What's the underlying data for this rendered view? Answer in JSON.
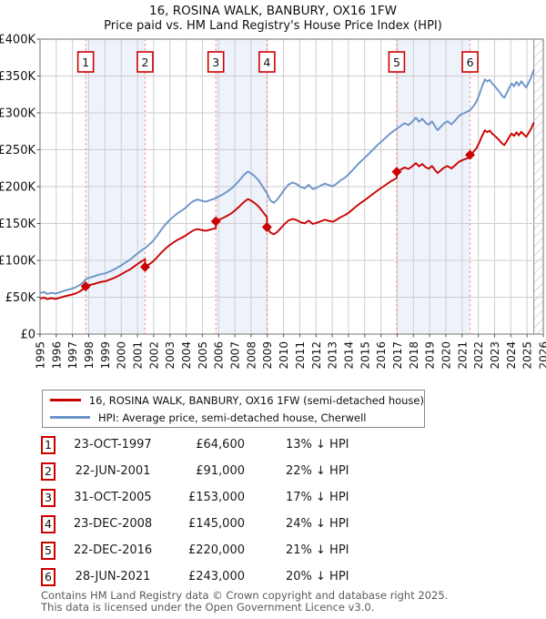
{
  "header": {
    "title": "16, ROSINA WALK, BANBURY, OX16 1FW",
    "subtitle": "Price paid vs. HM Land Registry's House Price Index (HPI)"
  },
  "colors": {
    "price_line": "#cc0000",
    "hpi_line": "#6b94c8",
    "sale_dash": "#f98080",
    "band_fill": "#eef2fb",
    "grid": "#cdcdcd",
    "plot_border": "#8a8a8a",
    "hatch_line": "#bbbbbb",
    "tick_text": "#111111",
    "footer_text": "#595959"
  },
  "legend": [
    {
      "label": "16, ROSINA WALK, BANBURY, OX16 1FW (semi-detached house)",
      "color": "#cc0000"
    },
    {
      "label": "HPI: Average price, semi-detached house, Cherwell",
      "color": "#6b94c8"
    }
  ],
  "chart_data": {
    "type": "line",
    "title": "16, ROSINA WALK, BANBURY, OX16 1FW — Price paid vs. HPI",
    "xlabel": "",
    "ylabel": "",
    "x_range": [
      1995,
      2026
    ],
    "y_range": [
      0,
      400000
    ],
    "y_ticks": [
      {
        "value": 0,
        "label": "£0"
      },
      {
        "value": 50000,
        "label": "£50K"
      },
      {
        "value": 100000,
        "label": "£100K"
      },
      {
        "value": 150000,
        "label": "£150K"
      },
      {
        "value": 200000,
        "label": "£200K"
      },
      {
        "value": 250000,
        "label": "£250K"
      },
      {
        "value": 300000,
        "label": "£300K"
      },
      {
        "value": 350000,
        "label": "£350K"
      },
      {
        "value": 400000,
        "label": "£400K"
      }
    ],
    "x_tick_years": [
      1995,
      1996,
      1997,
      1998,
      1999,
      2000,
      2001,
      2002,
      2003,
      2004,
      2005,
      2006,
      2007,
      2008,
      2009,
      2010,
      2011,
      2012,
      2013,
      2014,
      2015,
      2016,
      2017,
      2018,
      2019,
      2020,
      2021,
      2022,
      2023,
      2024,
      2025,
      2026
    ],
    "data_end_year": 2025.42,
    "ownership_bands": [
      [
        1997.81,
        2001.47
      ],
      [
        2005.83,
        2008.98
      ],
      [
        2016.97,
        2021.49
      ]
    ],
    "hpi_series": {
      "name": "HPI: Average price, semi-detached house, Cherwell",
      "points": [
        [
          1995.0,
          55500
        ],
        [
          1995.25,
          57000
        ],
        [
          1995.45,
          54500
        ],
        [
          1995.7,
          56000
        ],
        [
          1995.95,
          54800
        ],
        [
          1996.2,
          56500
        ],
        [
          1996.45,
          58500
        ],
        [
          1996.7,
          60000
        ],
        [
          1996.95,
          61500
        ],
        [
          1997.2,
          63500
        ],
        [
          1997.45,
          66500
        ],
        [
          1997.65,
          70000
        ],
        [
          1997.81,
          74300
        ],
        [
          1998.05,
          76500
        ],
        [
          1998.3,
          78000
        ],
        [
          1998.55,
          80000
        ],
        [
          1998.8,
          81500
        ],
        [
          1999.05,
          82500
        ],
        [
          1999.3,
          85000
        ],
        [
          1999.55,
          87500
        ],
        [
          1999.8,
          90500
        ],
        [
          2000.05,
          94000
        ],
        [
          2000.3,
          97500
        ],
        [
          2000.55,
          101000
        ],
        [
          2000.8,
          105500
        ],
        [
          2001.05,
          110000
        ],
        [
          2001.25,
          113500
        ],
        [
          2001.47,
          116700
        ],
        [
          2001.7,
          121000
        ],
        [
          2001.95,
          126000
        ],
        [
          2002.2,
          133000
        ],
        [
          2002.45,
          141000
        ],
        [
          2002.7,
          148000
        ],
        [
          2002.95,
          154000
        ],
        [
          2003.2,
          159000
        ],
        [
          2003.45,
          163500
        ],
        [
          2003.7,
          167000
        ],
        [
          2003.95,
          171000
        ],
        [
          2004.2,
          176000
        ],
        [
          2004.45,
          180500
        ],
        [
          2004.7,
          182500
        ],
        [
          2004.95,
          181000
        ],
        [
          2005.2,
          179500
        ],
        [
          2005.45,
          181500
        ],
        [
          2005.65,
          183000
        ],
        [
          2005.83,
          184300
        ],
        [
          2006.05,
          187000
        ],
        [
          2006.3,
          190000
        ],
        [
          2006.55,
          193500
        ],
        [
          2006.8,
          197500
        ],
        [
          2007.05,
          203000
        ],
        [
          2007.3,
          209000
        ],
        [
          2007.55,
          215500
        ],
        [
          2007.8,
          220500
        ],
        [
          2008.0,
          218000
        ],
        [
          2008.2,
          214500
        ],
        [
          2008.45,
          209000
        ],
        [
          2008.7,
          200500
        ],
        [
          2008.98,
          190800
        ],
        [
          2009.2,
          181000
        ],
        [
          2009.4,
          178000
        ],
        [
          2009.6,
          182000
        ],
        [
          2009.8,
          188000
        ],
        [
          2010.05,
          196000
        ],
        [
          2010.3,
          202500
        ],
        [
          2010.55,
          205500
        ],
        [
          2010.8,
          203500
        ],
        [
          2011.05,
          199500
        ],
        [
          2011.3,
          197500
        ],
        [
          2011.55,
          202500
        ],
        [
          2011.8,
          196500
        ],
        [
          2012.05,
          198500
        ],
        [
          2012.3,
          201500
        ],
        [
          2012.55,
          204000
        ],
        [
          2012.8,
          202000
        ],
        [
          2013.05,
          200500
        ],
        [
          2013.3,
          204500
        ],
        [
          2013.55,
          209000
        ],
        [
          2013.8,
          212500
        ],
        [
          2014.05,
          217500
        ],
        [
          2014.3,
          223500
        ],
        [
          2014.55,
          229500
        ],
        [
          2014.8,
          235000
        ],
        [
          2015.05,
          240000
        ],
        [
          2015.3,
          245500
        ],
        [
          2015.55,
          251000
        ],
        [
          2015.8,
          256500
        ],
        [
          2016.05,
          261500
        ],
        [
          2016.3,
          266500
        ],
        [
          2016.6,
          272500
        ],
        [
          2016.97,
          278500
        ],
        [
          2017.2,
          282000
        ],
        [
          2017.45,
          286000
        ],
        [
          2017.7,
          283500
        ],
        [
          2017.95,
          288500
        ],
        [
          2018.15,
          293500
        ],
        [
          2018.35,
          288000
        ],
        [
          2018.55,
          292000
        ],
        [
          2018.75,
          286500
        ],
        [
          2018.95,
          284000
        ],
        [
          2019.15,
          288500
        ],
        [
          2019.35,
          281000
        ],
        [
          2019.5,
          276500
        ],
        [
          2019.7,
          281500
        ],
        [
          2019.9,
          286000
        ],
        [
          2020.1,
          288500
        ],
        [
          2020.35,
          284500
        ],
        [
          2020.6,
          290500
        ],
        [
          2020.8,
          295500
        ],
        [
          2021.0,
          298500
        ],
        [
          2021.25,
          301000
        ],
        [
          2021.49,
          303800
        ],
        [
          2021.7,
          309000
        ],
        [
          2021.9,
          316000
        ],
        [
          2022.05,
          324000
        ],
        [
          2022.2,
          334000
        ],
        [
          2022.4,
          345500
        ],
        [
          2022.55,
          342500
        ],
        [
          2022.7,
          345000
        ],
        [
          2022.85,
          340000
        ],
        [
          2023.0,
          336500
        ],
        [
          2023.15,
          332500
        ],
        [
          2023.3,
          328500
        ],
        [
          2023.45,
          323500
        ],
        [
          2023.6,
          320500
        ],
        [
          2023.75,
          327000
        ],
        [
          2023.9,
          334000
        ],
        [
          2024.05,
          340000
        ],
        [
          2024.2,
          336000
        ],
        [
          2024.35,
          342000
        ],
        [
          2024.5,
          337000
        ],
        [
          2024.65,
          343000
        ],
        [
          2024.8,
          338500
        ],
        [
          2024.95,
          334500
        ],
        [
          2025.1,
          341000
        ],
        [
          2025.25,
          348000
        ],
        [
          2025.42,
          359000
        ]
      ]
    },
    "price_series_rule": "price paid indexed by HPI between sales; resets to sale price at each sale",
    "sales": [
      {
        "num": 1,
        "date": "23-OCT-1997",
        "year": 1997.81,
        "price": 64600,
        "pct": "13% ↓ HPI"
      },
      {
        "num": 2,
        "date": "22-JUN-2001",
        "year": 2001.47,
        "price": 91000,
        "pct": "22% ↓ HPI"
      },
      {
        "num": 3,
        "date": "31-OCT-2005",
        "year": 2005.83,
        "price": 153000,
        "pct": "17% ↓ HPI"
      },
      {
        "num": 4,
        "date": "23-DEC-2008",
        "year": 2008.98,
        "price": 145000,
        "pct": "24% ↓ HPI"
      },
      {
        "num": 5,
        "date": "22-DEC-2016",
        "year": 2016.97,
        "price": 220000,
        "pct": "21% ↓ HPI"
      },
      {
        "num": 6,
        "date": "28-JUN-2021",
        "year": 2021.49,
        "price": 243000,
        "pct": "20% ↓ HPI"
      }
    ]
  },
  "table": {
    "rows": [
      {
        "num": "1",
        "date": "23-OCT-1997",
        "price": "£64,600",
        "pct": "13% ↓ HPI"
      },
      {
        "num": "2",
        "date": "22-JUN-2001",
        "price": "£91,000",
        "pct": "22% ↓ HPI"
      },
      {
        "num": "3",
        "date": "31-OCT-2005",
        "price": "£153,000",
        "pct": "17% ↓ HPI"
      },
      {
        "num": "4",
        "date": "23-DEC-2008",
        "price": "£145,000",
        "pct": "24% ↓ HPI"
      },
      {
        "num": "5",
        "date": "22-DEC-2016",
        "price": "£220,000",
        "pct": "21% ↓ HPI"
      },
      {
        "num": "6",
        "date": "28-JUN-2021",
        "price": "£243,000",
        "pct": "20% ↓ HPI"
      }
    ]
  },
  "footer": {
    "line1": "Contains HM Land Registry data © Crown copyright and database right 2025.",
    "line2": "This data is licensed under the Open Government Licence v3.0."
  }
}
